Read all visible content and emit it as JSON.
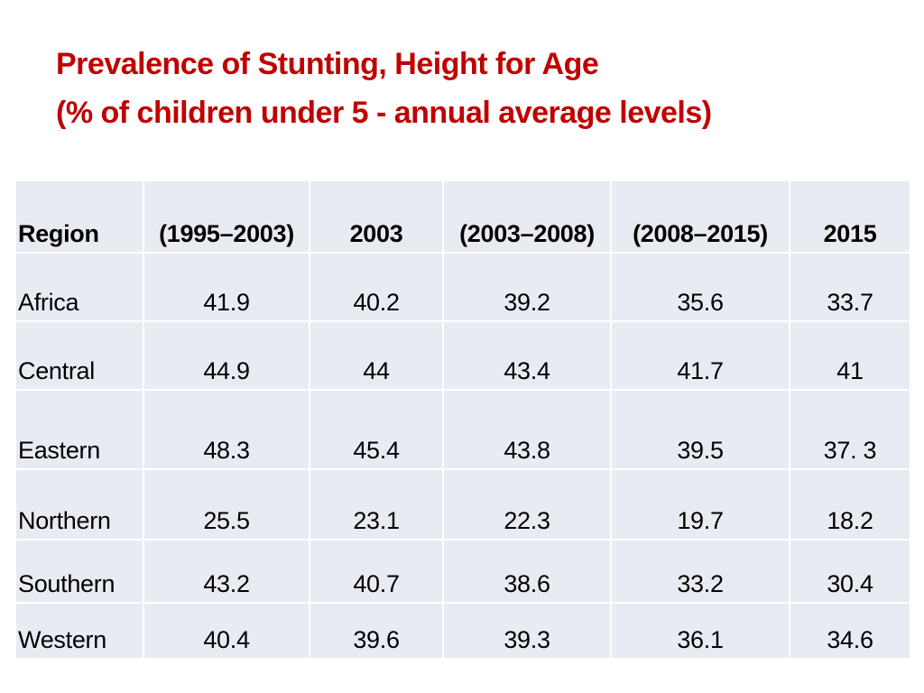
{
  "title": {
    "line1": "Prevalence of Stunting, Height for Age",
    "line2": "(% of children under 5 - annual average levels)"
  },
  "table": {
    "headers": [
      "Region",
      "(1995–2003)",
      "2003",
      "(2003–2008)",
      "(2008–2015)",
      "2015"
    ],
    "rows": [
      {
        "region": "Africa",
        "values": [
          "41.9",
          "40.2",
          "39.2",
          "35.6",
          "33.7"
        ]
      },
      {
        "region": "Central",
        "values": [
          "44.9",
          "44",
          "43.4",
          "41.7",
          "41"
        ]
      },
      {
        "region": "Eastern",
        "values": [
          "48.3",
          "45.4",
          "43.8",
          "39.5",
          "37. 3"
        ]
      },
      {
        "region": "Northern",
        "values": [
          "25.5",
          "23.1",
          "22.3",
          "19.7",
          "18.2"
        ]
      },
      {
        "region": "Southern",
        "values": [
          "43.2",
          "40.7",
          "38.6",
          "33.2",
          "30.4"
        ]
      },
      {
        "region": "Western",
        "values": [
          "40.4",
          "39.6",
          "39.3",
          "36.1",
          "34.6"
        ]
      }
    ]
  },
  "colors": {
    "title": "#c00000",
    "cell_background": "#e9ebf3",
    "grid_lines": "#ffffff"
  }
}
